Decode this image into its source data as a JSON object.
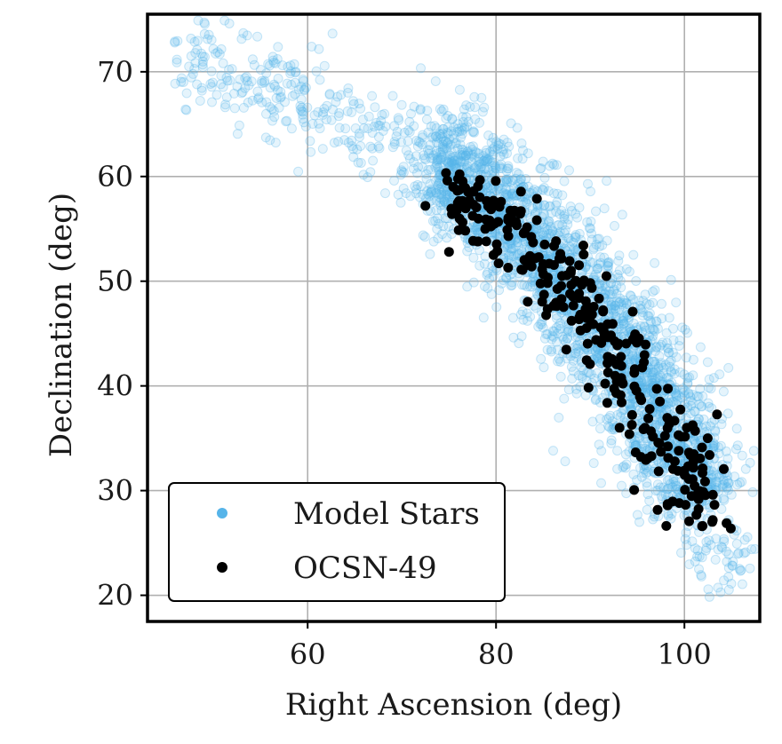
{
  "chart_data": {
    "type": "scatter",
    "title": "",
    "xlabel": "Right Ascension (deg)",
    "ylabel": "Declination (deg)",
    "xlim": [
      43,
      108
    ],
    "ylim": [
      17.5,
      75.5
    ],
    "xticks": [
      60,
      80,
      100
    ],
    "yticks": [
      20,
      30,
      40,
      50,
      60,
      70
    ],
    "grid": true,
    "legend_position": "bottom-left",
    "series": [
      {
        "name": "Model Stars",
        "color": "#56b4e9",
        "opacity": 0.22,
        "marker": "circle-open-filled",
        "description_count": 3000
      },
      {
        "name": "OCSN-49",
        "color": "#000000",
        "opacity": 1,
        "marker": "circle",
        "description_count": 300
      }
    ],
    "model_stars_ridge": [
      [
        46,
        71.5
      ],
      [
        52,
        71.0
      ],
      [
        56,
        68.5
      ],
      [
        60,
        67.0
      ],
      [
        64,
        65.5
      ],
      [
        68,
        64.0
      ],
      [
        72,
        62.5
      ],
      [
        76,
        60.5
      ],
      [
        80,
        57.5
      ],
      [
        84,
        53.5
      ],
      [
        88,
        49.5
      ],
      [
        92,
        45.0
      ],
      [
        96,
        40.0
      ],
      [
        99,
        35.0
      ],
      [
        101,
        30.0
      ],
      [
        103,
        25.0
      ],
      [
        104.5,
        21.0
      ]
    ],
    "ocsn49_ridge": [
      [
        72.5,
        57.0
      ],
      [
        77,
        57.5
      ],
      [
        80,
        56.0
      ],
      [
        84,
        52.0
      ],
      [
        88,
        48.5
      ],
      [
        91,
        44.5
      ],
      [
        94,
        41.0
      ],
      [
        97,
        37.0
      ],
      [
        99,
        33.5
      ],
      [
        101,
        30.0
      ],
      [
        102,
        26.5
      ]
    ]
  }
}
